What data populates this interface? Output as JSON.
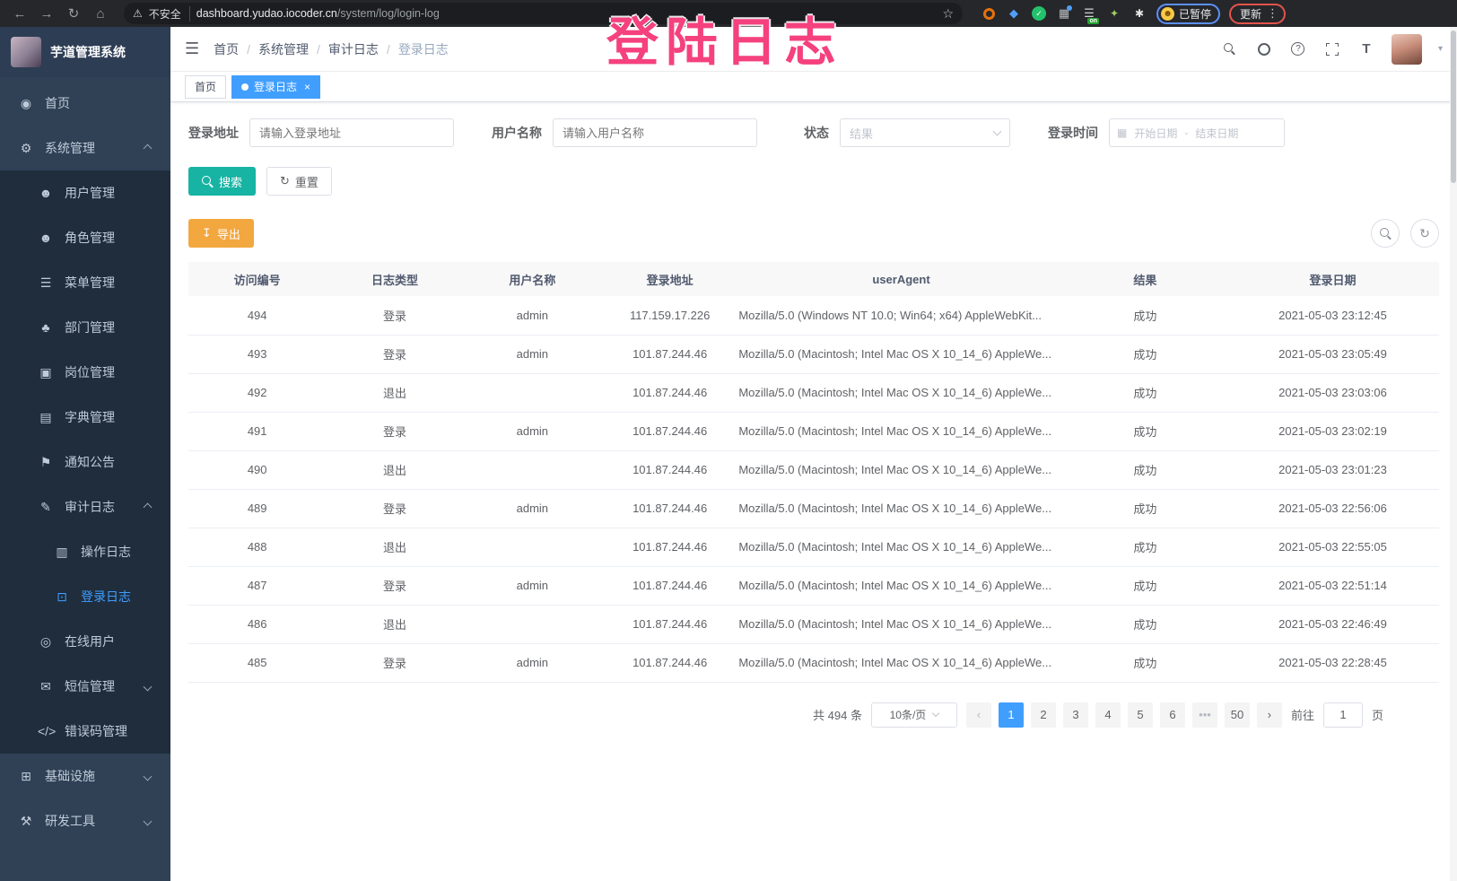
{
  "browser": {
    "security_label": "不安全",
    "url_host": "dashboard.yudao.iocoder.cn",
    "url_path": "/system/log/login-log",
    "extension_on_badge": "on",
    "paused_badge": "已暂停",
    "update_button": "更新"
  },
  "overlay_title": "登陆日志",
  "icons": {
    "back-icon": "←",
    "forward-icon": "→",
    "reload-icon": "↻",
    "home-icon": "⌂",
    "warning-icon": "⚠",
    "star-icon": "☆",
    "kebab-icon": "⋮",
    "hamburger-icon": "☰",
    "dashboard-icon": "◉",
    "gear-icon": "⚙",
    "user-icon": "☻",
    "users-icon": "☻",
    "menu-list-icon": "☰",
    "org-tree-icon": "♣",
    "post-badge-icon": "▣",
    "dictionary-icon": "▤",
    "announcement-icon": "⚑",
    "audit-log-icon": "✎",
    "operation-log-icon": "▥",
    "login-log-icon": "⊡",
    "online-users-icon": "◎",
    "sms-icon": "✉",
    "error-code-icon": "</>",
    "infrastructure-icon": "⊞",
    "dev-tools-icon": "⚒",
    "calendar-icon": "▦",
    "download-icon": "↧",
    "refresh-icon": "↻",
    "font-size-icon": "T",
    "caret-down-icon": "▾",
    "prev-icon": "‹",
    "next-icon": "›",
    "ext-grid-icon": "▦",
    "ext-list-icon": "☰",
    "ext-leaf-icon": "✦",
    "ext-puzzle-icon": "✱",
    "emoji-face-icon": "☻",
    "check-icon": "✓",
    "gem-icon": "◆",
    "tab-close-icon": "×",
    "date-separator-icon": "-"
  },
  "sidebar": {
    "app_title": "芋道管理系统",
    "items": [
      {
        "id": "home",
        "label": "首页",
        "icon": "dashboard-icon",
        "level": 1,
        "active": false,
        "arrow": null
      },
      {
        "id": "system-management",
        "label": "系统管理",
        "icon": "gear-icon",
        "level": 1,
        "active": false,
        "arrow": "up"
      },
      {
        "id": "user-management",
        "label": "用户管理",
        "icon": "user-icon",
        "level": 2,
        "active": false,
        "arrow": null
      },
      {
        "id": "role-management",
        "label": "角色管理",
        "icon": "users-icon",
        "level": 2,
        "active": false,
        "arrow": null
      },
      {
        "id": "menu-management",
        "label": "菜单管理",
        "icon": "menu-list-icon",
        "level": 2,
        "active": false,
        "arrow": null
      },
      {
        "id": "dept-management",
        "label": "部门管理",
        "icon": "org-tree-icon",
        "level": 2,
        "active": false,
        "arrow": null
      },
      {
        "id": "post-management",
        "label": "岗位管理",
        "icon": "post-badge-icon",
        "level": 2,
        "active": false,
        "arrow": null
      },
      {
        "id": "dict-management",
        "label": "字典管理",
        "icon": "dictionary-icon",
        "level": 2,
        "active": false,
        "arrow": null
      },
      {
        "id": "notice-announcement",
        "label": "通知公告",
        "icon": "announcement-icon",
        "level": 2,
        "active": false,
        "arrow": null
      },
      {
        "id": "audit-log",
        "label": "审计日志",
        "icon": "audit-log-icon",
        "level": 2,
        "active": false,
        "arrow": "up"
      },
      {
        "id": "operation-log",
        "label": "操作日志",
        "icon": "operation-log-icon",
        "level": 3,
        "active": false,
        "arrow": null
      },
      {
        "id": "login-log",
        "label": "登录日志",
        "icon": "login-log-icon",
        "level": 3,
        "active": true,
        "arrow": null
      },
      {
        "id": "online-users",
        "label": "在线用户",
        "icon": "online-users-icon",
        "level": 2,
        "active": false,
        "arrow": null
      },
      {
        "id": "sms-management",
        "label": "短信管理",
        "icon": "sms-icon",
        "level": 2,
        "active": false,
        "arrow": "down"
      },
      {
        "id": "error-code-management",
        "label": "错误码管理",
        "icon": "error-code-icon",
        "level": 2,
        "active": false,
        "arrow": null
      },
      {
        "id": "infrastructure",
        "label": "基础设施",
        "icon": "infrastructure-icon",
        "level": 1,
        "active": false,
        "arrow": "down"
      },
      {
        "id": "dev-tools",
        "label": "研发工具",
        "icon": "dev-tools-icon",
        "level": 1,
        "active": false,
        "arrow": "down"
      }
    ]
  },
  "navbar": {
    "breadcrumb": [
      "首页",
      "系统管理",
      "审计日志",
      "登录日志"
    ]
  },
  "tabs": [
    {
      "id": "home",
      "label": "首页",
      "active": false
    },
    {
      "id": "login-log",
      "label": "登录日志",
      "active": true
    }
  ],
  "filters": {
    "login_address_label": "登录地址",
    "login_address_placeholder": "请输入登录地址",
    "username_label": "用户名称",
    "username_placeholder": "请输入用户名称",
    "status_label": "状态",
    "status_placeholder": "结果",
    "login_time_label": "登录时间",
    "date_start_placeholder": "开始日期",
    "date_separator": "-",
    "date_end_placeholder": "结束日期",
    "search_button": "搜索",
    "reset_button": "重置"
  },
  "toolbar": {
    "export_label": "导出"
  },
  "table": {
    "columns": [
      "访问编号",
      "日志类型",
      "用户名称",
      "登录地址",
      "userAgent",
      "结果",
      "登录日期"
    ],
    "rows": [
      [
        "494",
        "登录",
        "admin",
        "117.159.17.226",
        "Mozilla/5.0 (Windows NT 10.0; Win64; x64) AppleWebKit...",
        "成功",
        "2021-05-03 23:12:45"
      ],
      [
        "493",
        "登录",
        "admin",
        "101.87.244.46",
        "Mozilla/5.0 (Macintosh; Intel Mac OS X 10_14_6) AppleWe...",
        "成功",
        "2021-05-03 23:05:49"
      ],
      [
        "492",
        "退出",
        "",
        "101.87.244.46",
        "Mozilla/5.0 (Macintosh; Intel Mac OS X 10_14_6) AppleWe...",
        "成功",
        "2021-05-03 23:03:06"
      ],
      [
        "491",
        "登录",
        "admin",
        "101.87.244.46",
        "Mozilla/5.0 (Macintosh; Intel Mac OS X 10_14_6) AppleWe...",
        "成功",
        "2021-05-03 23:02:19"
      ],
      [
        "490",
        "退出",
        "",
        "101.87.244.46",
        "Mozilla/5.0 (Macintosh; Intel Mac OS X 10_14_6) AppleWe...",
        "成功",
        "2021-05-03 23:01:23"
      ],
      [
        "489",
        "登录",
        "admin",
        "101.87.244.46",
        "Mozilla/5.0 (Macintosh; Intel Mac OS X 10_14_6) AppleWe...",
        "成功",
        "2021-05-03 22:56:06"
      ],
      [
        "488",
        "退出",
        "",
        "101.87.244.46",
        "Mozilla/5.0 (Macintosh; Intel Mac OS X 10_14_6) AppleWe...",
        "成功",
        "2021-05-03 22:55:05"
      ],
      [
        "487",
        "登录",
        "admin",
        "101.87.244.46",
        "Mozilla/5.0 (Macintosh; Intel Mac OS X 10_14_6) AppleWe...",
        "成功",
        "2021-05-03 22:51:14"
      ],
      [
        "486",
        "退出",
        "",
        "101.87.244.46",
        "Mozilla/5.0 (Macintosh; Intel Mac OS X 10_14_6) AppleWe...",
        "成功",
        "2021-05-03 22:46:49"
      ],
      [
        "485",
        "登录",
        "admin",
        "101.87.244.46",
        "Mozilla/5.0 (Macintosh; Intel Mac OS X 10_14_6) AppleWe...",
        "成功",
        "2021-05-03 22:28:45"
      ]
    ]
  },
  "pagination": {
    "total_text": "共 494 条",
    "page_size": "10条/页",
    "pages": [
      "1",
      "2",
      "3",
      "4",
      "5",
      "6",
      "•••",
      "50"
    ],
    "active_page": "1",
    "goto_label": "前往",
    "goto_value": "1",
    "goto_suffix": "页"
  },
  "colors": {
    "accent_blue": "#409eff",
    "teal_button": "#17b3a3",
    "orange_button": "#f3a73f",
    "sidebar_bg": "#304156",
    "submenu_bg": "#1f2d3d",
    "overlay_pink": "#f5417e"
  }
}
